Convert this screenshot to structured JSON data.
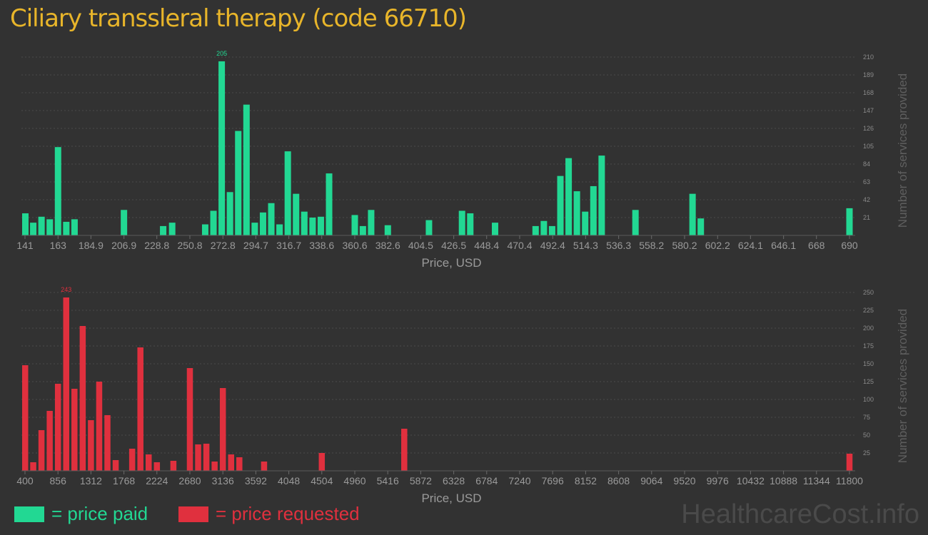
{
  "title": "Ciliary transsleral therapy (code 66710)",
  "colors": {
    "paid": "#22d893",
    "requested": "#e0303e",
    "title": "#e8b52a"
  },
  "legend": {
    "paid": "= price paid",
    "requested": "= price requested"
  },
  "watermark": "HealthcareCost.info",
  "chart_data": [
    {
      "type": "bar",
      "series_key": "paid",
      "xlabel": "Price, USD",
      "ylabel": "Number of services provided",
      "xlim": [
        141,
        690
      ],
      "ylim": [
        0,
        210
      ],
      "xticks": [
        141,
        163,
        184.9,
        206.9,
        228.8,
        250.8,
        272.8,
        294.7,
        316.7,
        338.6,
        360.6,
        382.6,
        404.5,
        426.5,
        448.4,
        470.4,
        492.4,
        514.3,
        536.3,
        558.2,
        580.2,
        602.2,
        624.1,
        646.1,
        668,
        690
      ],
      "yticks": [
        21,
        42,
        63,
        84,
        105,
        126,
        147,
        168,
        189,
        210
      ],
      "grid": true,
      "peak_label": "205",
      "x": [
        141,
        146.5,
        152,
        157.5,
        163,
        168.5,
        174,
        206.9,
        233,
        239,
        261,
        266.5,
        272,
        277.5,
        283,
        288.5,
        294,
        299.5,
        305,
        310.5,
        316,
        321.5,
        327,
        332.5,
        338,
        343.5,
        360.6,
        366,
        371.5,
        382.6,
        410,
        432,
        437.5,
        454,
        481,
        486.5,
        492,
        497.5,
        503,
        508.5,
        514,
        519.5,
        525,
        547.5,
        585.5,
        591,
        690
      ],
      "values": [
        26,
        15,
        22,
        19,
        104,
        16,
        19,
        30,
        11,
        15,
        13,
        29,
        205,
        51,
        123,
        154,
        15,
        27,
        38,
        13,
        99,
        49,
        28,
        21,
        22,
        73,
        24,
        11,
        30,
        12,
        18,
        29,
        26,
        15,
        11,
        17,
        11,
        70,
        91,
        52,
        28,
        58,
        94,
        30,
        49,
        20,
        32
      ]
    },
    {
      "type": "bar",
      "series_key": "requested",
      "xlabel": "Price, USD",
      "ylabel": "Number of services provided",
      "xlim": [
        400,
        11800
      ],
      "ylim": [
        0,
        250
      ],
      "xticks": [
        400,
        856,
        1312,
        1768,
        2224,
        2680,
        3136,
        3592,
        4048,
        4504,
        4960,
        5416,
        5872,
        6328,
        6784,
        7240,
        7696,
        8152,
        8608,
        9064,
        9520,
        9976,
        10432,
        10888,
        11344,
        11800
      ],
      "yticks": [
        25,
        50,
        75,
        100,
        125,
        150,
        175,
        200,
        225,
        250
      ],
      "grid": true,
      "peak_label": "243",
      "x": [
        400,
        514,
        628,
        742,
        856,
        970,
        1084,
        1198,
        1312,
        1426,
        1540,
        1654,
        1882,
        1996,
        2110,
        2224,
        2452,
        2680,
        2794,
        2908,
        3022,
        3136,
        3250,
        3364,
        3706,
        4504,
        5644,
        11800
      ],
      "values": [
        148,
        12,
        57,
        84,
        122,
        243,
        115,
        203,
        71,
        125,
        78,
        15,
        31,
        173,
        23,
        12,
        14,
        144,
        37,
        38,
        13,
        116,
        23,
        19,
        13,
        25,
        59,
        24
      ]
    }
  ]
}
